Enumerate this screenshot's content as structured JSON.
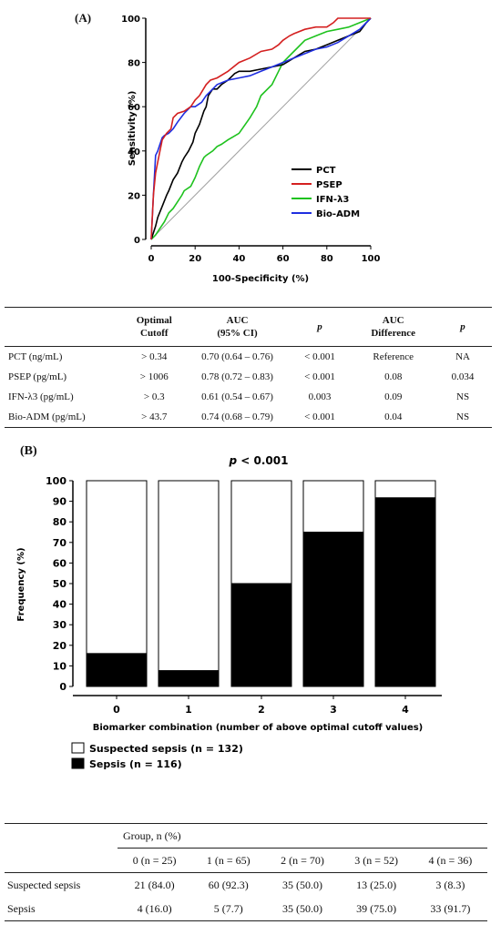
{
  "panelA": {
    "label": "(A)",
    "ylabel": "Sensitivity (%)",
    "xlabel": "100-Specificity (%)",
    "ticks": [
      "0",
      "20",
      "40",
      "60",
      "80",
      "100"
    ]
  },
  "chart_data": [
    {
      "type": "line",
      "title": "",
      "xlabel": "100-Specificity (%)",
      "ylabel": "Sensitivity (%)",
      "xlim": [
        0,
        100
      ],
      "ylim": [
        0,
        100
      ],
      "legend_position": "bottom-right",
      "series": [
        {
          "name": "PCT",
          "color": "#000000",
          "x": [
            0,
            2,
            3,
            5,
            7,
            8,
            10,
            12,
            14,
            15,
            17,
            19,
            20,
            22,
            24,
            25,
            26,
            28,
            30,
            32,
            35,
            38,
            40,
            45,
            50,
            55,
            60,
            65,
            70,
            75,
            80,
            85,
            90,
            95,
            98,
            100
          ],
          "y": [
            0,
            6,
            10,
            15,
            20,
            22,
            27,
            30,
            35,
            37,
            40,
            44,
            48,
            52,
            58,
            60,
            65,
            68,
            68,
            70,
            72,
            75,
            76,
            76,
            77,
            78,
            79,
            82,
            85,
            86,
            88,
            90,
            92,
            94,
            98,
            100
          ]
        },
        {
          "name": "PSEP",
          "color": "#d42020",
          "x": [
            0,
            1,
            2,
            3,
            4,
            5,
            7,
            9,
            10,
            12,
            15,
            18,
            20,
            22,
            25,
            27,
            30,
            35,
            40,
            45,
            50,
            55,
            58,
            60,
            63,
            65,
            70,
            75,
            80,
            83,
            85,
            90,
            95,
            100
          ],
          "y": [
            0,
            20,
            30,
            35,
            40,
            45,
            48,
            50,
            55,
            57,
            58,
            60,
            63,
            65,
            70,
            72,
            73,
            76,
            80,
            82,
            85,
            86,
            88,
            90,
            92,
            93,
            95,
            96,
            96,
            98,
            100,
            100,
            100,
            100
          ]
        },
        {
          "name": "IFN-λ3",
          "color": "#1ec21e",
          "x": [
            0,
            2,
            4,
            6,
            8,
            10,
            12,
            14,
            15,
            18,
            20,
            22,
            24,
            25,
            28,
            30,
            32,
            35,
            40,
            45,
            48,
            50,
            55,
            58,
            60,
            65,
            70,
            75,
            80,
            85,
            90,
            95,
            100
          ],
          "y": [
            0,
            2,
            5,
            8,
            12,
            14,
            17,
            20,
            22,
            24,
            28,
            33,
            37,
            38,
            40,
            42,
            43,
            45,
            48,
            55,
            60,
            65,
            70,
            76,
            80,
            85,
            90,
            92,
            94,
            95,
            96,
            98,
            100
          ]
        },
        {
          "name": "Bio-ADM",
          "color": "#1f2ee0",
          "x": [
            0,
            1,
            2,
            3,
            4,
            5,
            6,
            8,
            10,
            12,
            15,
            18,
            20,
            23,
            25,
            28,
            30,
            35,
            40,
            45,
            50,
            55,
            60,
            65,
            70,
            75,
            80,
            85,
            90,
            95,
            100
          ],
          "y": [
            0,
            20,
            38,
            40,
            43,
            46,
            47,
            48,
            50,
            53,
            57,
            60,
            60,
            62,
            65,
            68,
            70,
            72,
            73,
            74,
            76,
            78,
            80,
            82,
            84,
            86,
            87,
            89,
            92,
            95,
            100
          ]
        },
        {
          "name": "",
          "color": "#a0a0a0",
          "x": [
            0,
            100
          ],
          "y": [
            0,
            100
          ]
        }
      ]
    },
    {
      "type": "bar",
      "title": "p < 0.001",
      "xlabel": "Biomarker combination (number of above optimal cutoff values)",
      "ylabel": "Frequency (%)",
      "categories": [
        "0",
        "1",
        "2",
        "3",
        "4"
      ],
      "ylim": [
        0,
        100
      ],
      "stacked": true,
      "series": [
        {
          "name": "Sepsis (n = 116)",
          "color": "#000000",
          "values": [
            16.0,
            7.7,
            50.0,
            75.0,
            91.7
          ]
        },
        {
          "name": "Suspected sepsis (n = 132)",
          "color": "#ffffff",
          "values": [
            84.0,
            92.3,
            50.0,
            25.0,
            8.3
          ]
        }
      ],
      "yticks": [
        "0",
        "10",
        "20",
        "30",
        "40",
        "50",
        "60",
        "70",
        "80",
        "90",
        "100"
      ],
      "legend_position": "bottom-left"
    }
  ],
  "table1": {
    "headers": [
      "",
      "Optimal\nCutoff",
      "AUC\n(95% CI)",
      "p",
      "AUC\nDifference",
      "p"
    ],
    "rows": [
      [
        "PCT (ng/mL)",
        "> 0.34",
        "0.70 (0.64 – 0.76)",
        "< 0.001",
        "Reference",
        "NA"
      ],
      [
        "PSEP (pg/mL)",
        "> 1006",
        "0.78 (0.72 – 0.83)",
        "< 0.001",
        "0.08",
        "0.034"
      ],
      [
        "IFN-λ3 (pg/mL)",
        "> 0.3",
        "0.61 (0.54 – 0.67)",
        "0.003",
        "0.09",
        "NS"
      ],
      [
        "Bio-ADM (pg/mL)",
        "> 43.7",
        "0.74 (0.68 – 0.79)",
        "< 0.001",
        "0.04",
        "NS"
      ]
    ]
  },
  "panelB": {
    "label": "(B)",
    "pvalue": "p < 0.001",
    "ylabel": "Frequency (%)",
    "xlabel": "Biomarker combination (number of above optimal cutoff values)",
    "legend": [
      {
        "label": "Suspected sepsis (n = 132)",
        "fill": "#ffffff"
      },
      {
        "label": "Sepsis (n = 116)",
        "fill": "#000000"
      }
    ]
  },
  "table2": {
    "group_header": "Group, n (%)",
    "columns": [
      "0 (n = 25)",
      "1 (n = 65)",
      "2 (n = 70)",
      "3 (n = 52)",
      "4 (n = 36)"
    ],
    "rows": [
      {
        "label": "Suspected sepsis",
        "values": [
          "21 (84.0)",
          "60 (92.3)",
          "35 (50.0)",
          "13 (25.0)",
          "3 (8.3)"
        ]
      },
      {
        "label": "Sepsis",
        "values": [
          "4 (16.0)",
          "5 (7.7)",
          "35 (50.0)",
          "39 (75.0)",
          "33 (91.7)"
        ]
      }
    ]
  }
}
